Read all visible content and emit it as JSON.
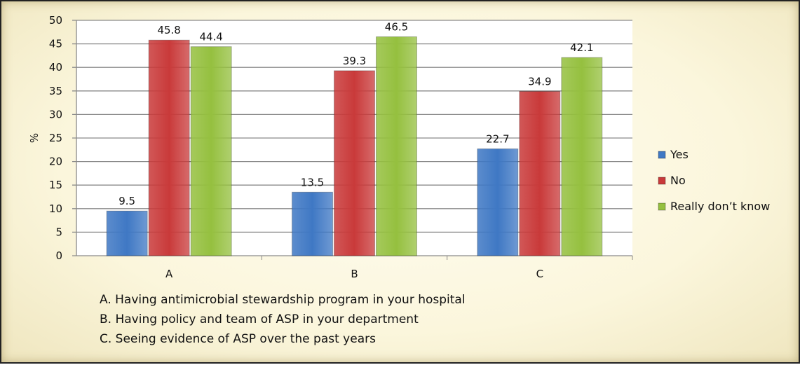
{
  "chart_data": {
    "type": "bar",
    "categories": [
      "A",
      "B",
      "C"
    ],
    "series": [
      {
        "name": "Yes",
        "values": [
          9.5,
          13.5,
          22.7
        ],
        "color": "#3f78c4"
      },
      {
        "name": "No",
        "values": [
          45.8,
          39.3,
          34.9
        ],
        "color": "#c93a3a"
      },
      {
        "name": "Really don’t know",
        "values": [
          44.4,
          46.5,
          42.1
        ],
        "color": "#95c03f"
      }
    ],
    "ylabel": "%",
    "ylim": [
      0,
      50
    ],
    "yticks": [
      0,
      5,
      10,
      15,
      20,
      25,
      30,
      35,
      40,
      45,
      50
    ],
    "grid": true,
    "legend": "right"
  },
  "notes": [
    "A. Having antimicrobial stewardship program in your hospital",
    "B. Having policy and team of ASP in your department",
    "C. Seeing  evidence of ASP over the past years"
  ]
}
